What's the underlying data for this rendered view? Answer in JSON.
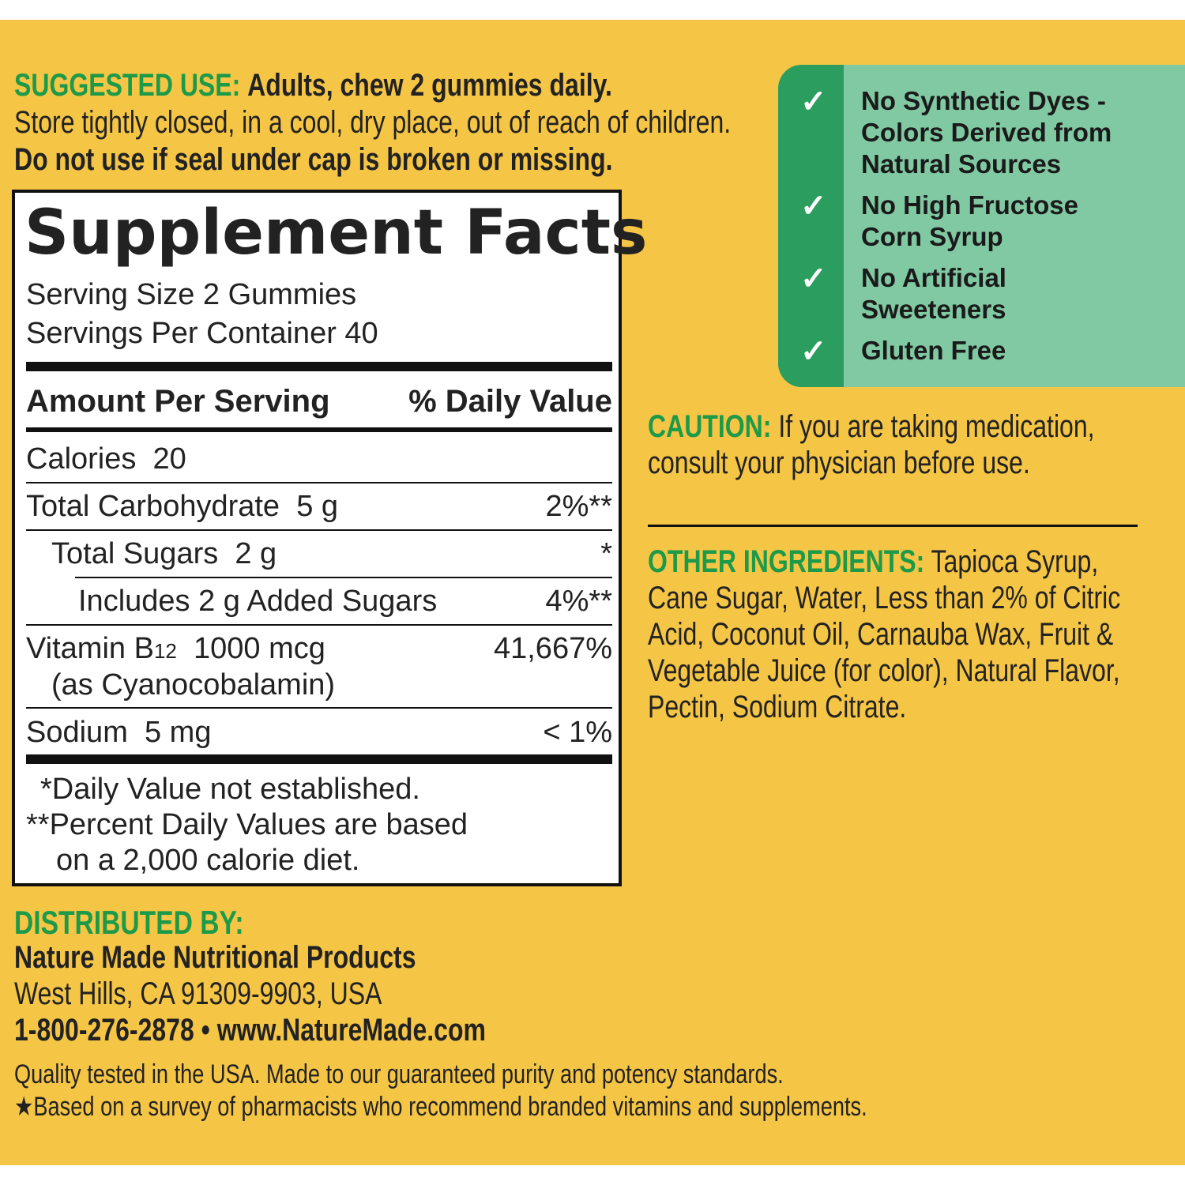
{
  "suggested_use": {
    "label": "SUGGESTED USE:",
    "text": "Adults, chew 2 gummies daily.",
    "lines": [
      "Store tightly closed, in a cool, dry place, out of reach of children.",
      "Do not use if seal under cap is broken or missing."
    ]
  },
  "supplement_facts": {
    "title": "Supplement Facts",
    "serving_size": "Serving Size 2 Gummies",
    "servings_per_container": "Servings Per Container 40",
    "header": [
      "Amount Per Serving",
      "% Daily Value"
    ],
    "rows": [
      {
        "name": "Calories",
        "amount": "20"
      },
      {
        "name": "Total Carbohydrate",
        "amount": "5 g",
        "dv": "2%**"
      },
      {
        "name": "Total Sugars",
        "amount": "2 g",
        "dv": "*"
      },
      {
        "name": "Includes 2 g Added Sugars",
        "dv": "4%**"
      },
      {
        "name": "Vitamin B",
        "subscript": "12",
        "amount": "1000 mcg",
        "source": "(as Cyanocobalamin)",
        "dv": "41,667%"
      },
      {
        "name": "Sodium",
        "amount": "5 mg",
        "dv": "< 1%"
      }
    ],
    "footnotes": [
      "*Daily Value not established.",
      "**Percent Daily Values are based",
      "on a 2,000 calorie diet."
    ]
  },
  "badges": [
    "No Synthetic Dyes - Colors Derived from Natural Sources",
    "No High Fructose Corn Syrup",
    "No Artificial Sweeteners",
    "Gluten Free"
  ],
  "caution": {
    "label": "CAUTION:",
    "text": "If you are taking medication, consult your physician before use."
  },
  "other_ingredients": {
    "label": "OTHER INGREDIENTS:",
    "text": "Tapioca Syrup, Cane Sugar, Water, Less than 2% of Citric Acid, Coconut Oil, Carnauba Wax, Fruit & Vegetable Juice (for color), Natural Flavor, Pectin, Sodium Citrate."
  },
  "distributed_by": {
    "label": "DISTRIBUTED BY:",
    "lines": [
      "Nature Made Nutritional Products",
      "West Hills, CA 91309-9903, USA",
      "1-800-276-2878 • www.NatureMade.com"
    ]
  },
  "footer": [
    "Quality tested in the USA. Made to our guaranteed purity and potency standards.",
    "★Based on a survey of pharmacists who recommend branded vitamins and supplements."
  ]
}
